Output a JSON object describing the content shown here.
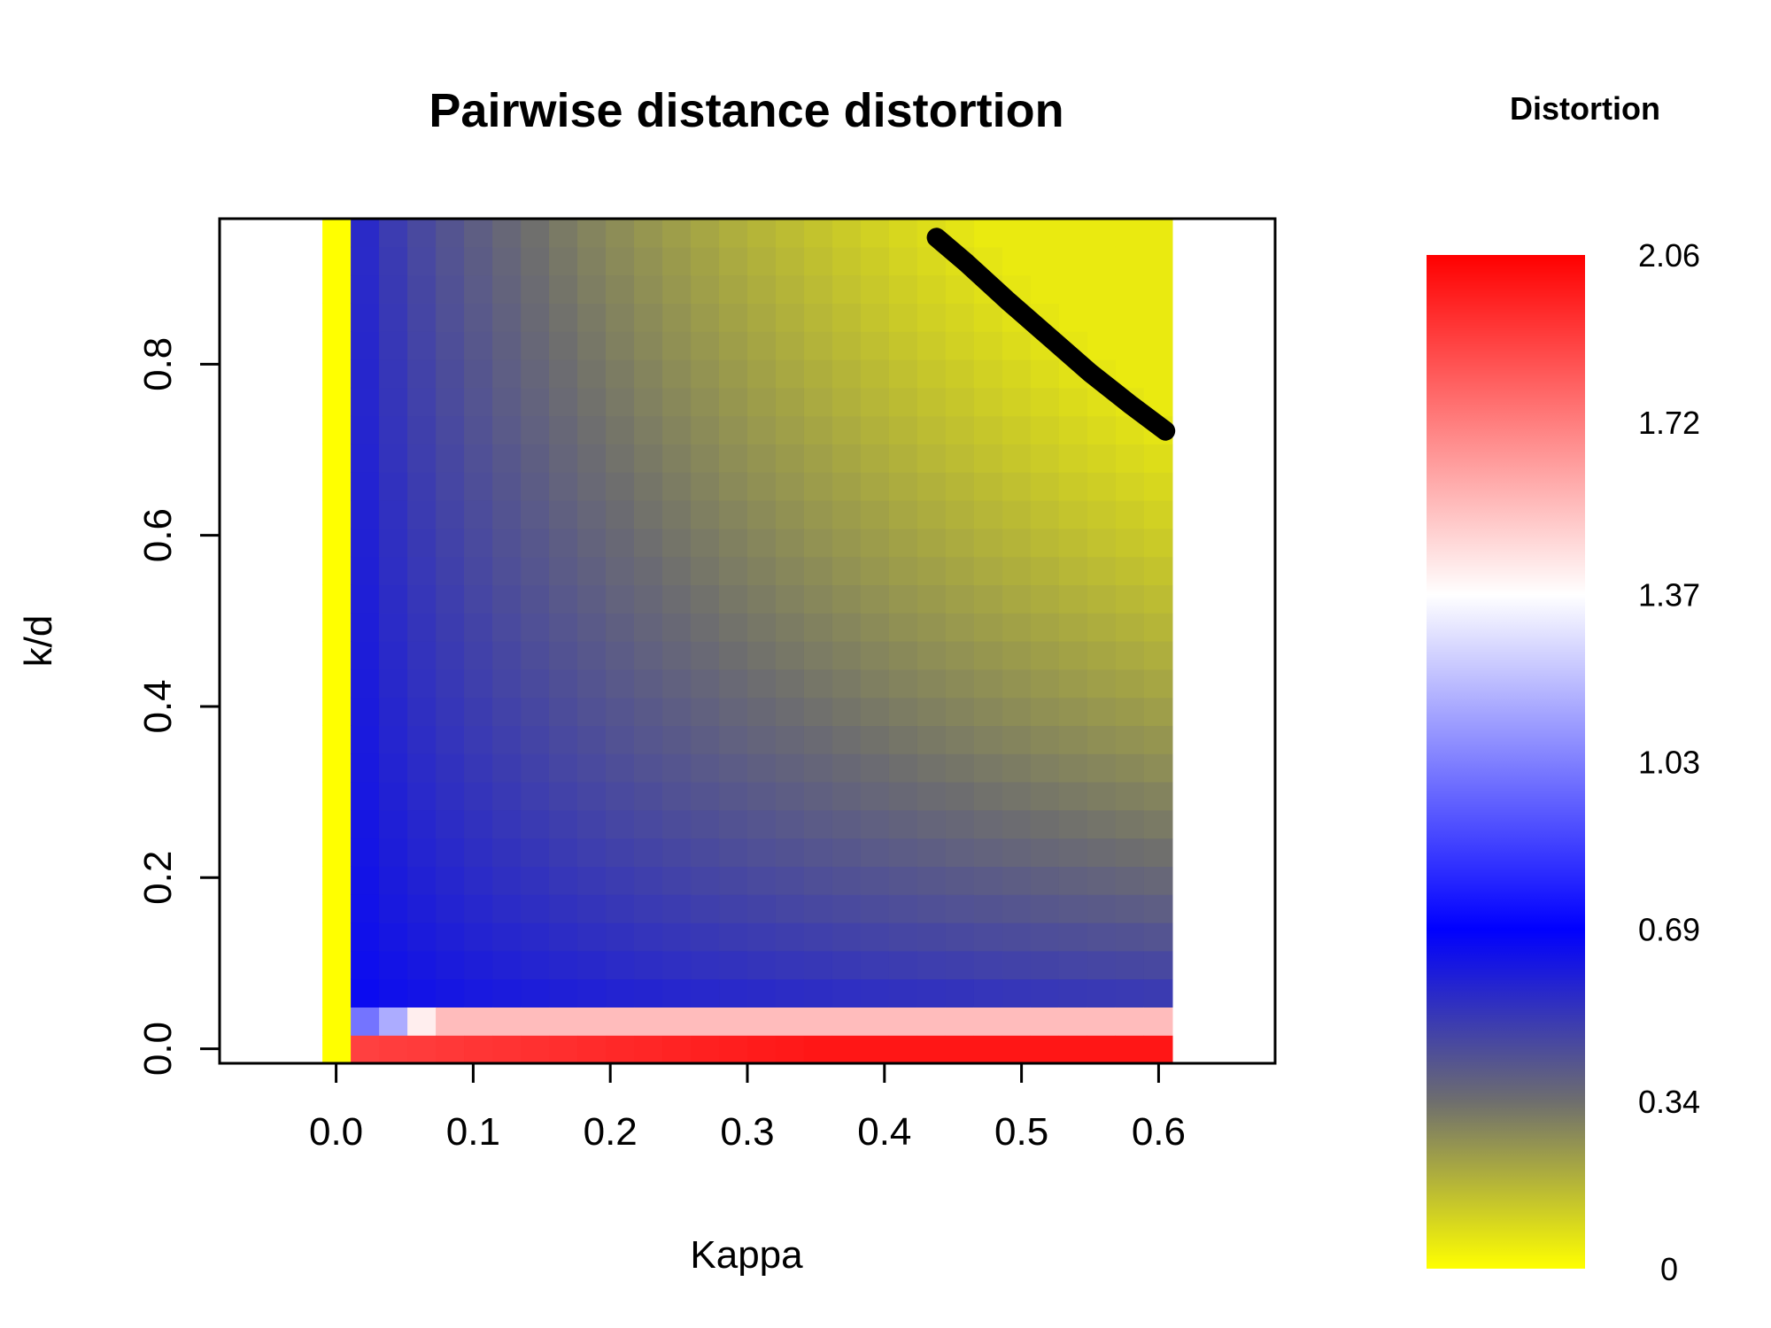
{
  "chart_data": {
    "type": "heatmap",
    "title": "Pairwise distance distortion",
    "xlabel": "Kappa",
    "ylabel": "k/d",
    "xlim": [
      -0.085,
      0.685
    ],
    "ylim": [
      -0.017,
      0.97
    ],
    "x_ticks": [
      "0.0",
      "0.1",
      "0.2",
      "0.3",
      "0.4",
      "0.5",
      "0.6"
    ],
    "y_ticks": [
      "0.0",
      "0.2",
      "0.4",
      "0.6",
      "0.8"
    ],
    "x_tick_values": [
      0.0,
      0.1,
      0.2,
      0.3,
      0.4,
      0.5,
      0.6
    ],
    "y_tick_values": [
      0.0,
      0.2,
      0.4,
      0.6,
      0.8
    ],
    "kappa_range": [
      -0.01,
      0.61
    ],
    "kd_range": [
      -0.017,
      0.97
    ],
    "grid": false,
    "colorbar": {
      "title": "Distortion",
      "labels": [
        "2.06",
        "1.72",
        "1.37",
        "1.03",
        "0.69",
        "0.34",
        "0"
      ],
      "values": [
        2.06,
        1.72,
        1.37,
        1.03,
        0.69,
        0.34,
        0
      ],
      "range": [
        0,
        2.06
      ],
      "stops": [
        {
          "value": 0,
          "color": "#ffff00"
        },
        {
          "value": 0.34,
          "color": "#6e6e6e"
        },
        {
          "value": 0.69,
          "color": "#0000ff"
        },
        {
          "value": 1.37,
          "color": "#ffffff"
        },
        {
          "value": 2.06,
          "color": "#ff0000"
        }
      ]
    },
    "contour_line": {
      "color": "#000000",
      "points": [
        [
          0.438,
          0.948
        ],
        [
          0.46,
          0.918
        ],
        [
          0.49,
          0.874
        ],
        [
          0.52,
          0.832
        ],
        [
          0.55,
          0.79
        ],
        [
          0.58,
          0.752
        ],
        [
          0.605,
          0.722
        ]
      ]
    }
  }
}
